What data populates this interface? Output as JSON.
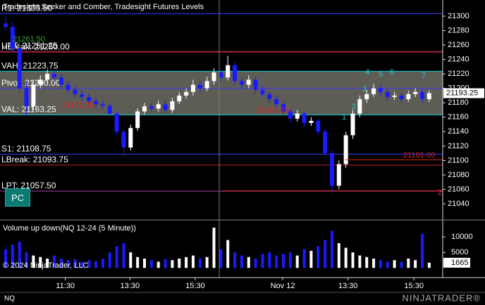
{
  "chart_data": [
    {
      "type": "candlestick",
      "title": "Tradesight Seeker and Comber, Tradesight Futures Levels",
      "open": [
        21290,
        21285,
        21255,
        21200,
        21175,
        21205,
        21212,
        21220,
        21215,
        21205,
        21198,
        21192,
        21188,
        21182,
        21178,
        21176,
        21165,
        21140,
        21118,
        21145,
        21168,
        21175,
        21172,
        21178,
        21170,
        21182,
        21190,
        21195,
        21205,
        21200,
        21210,
        21222,
        21215,
        21232,
        21210,
        21205,
        21212,
        21198,
        21192,
        21185,
        21178,
        21168,
        21158,
        21165,
        21152,
        21155,
        21140,
        21110,
        21065,
        21095,
        21135,
        21165,
        21185,
        21192,
        21200,
        21195,
        21188,
        21190,
        21185,
        21192,
        21195,
        21185
      ],
      "high": [
        21300,
        21292,
        21262,
        21208,
        21212,
        21218,
        21226,
        21225,
        21220,
        21210,
        21203,
        21197,
        21193,
        21187,
        21183,
        21180,
        21168,
        21143,
        21150,
        21172,
        21180,
        21179,
        21183,
        21182,
        21187,
        21195,
        21200,
        21212,
        21210,
        21216,
        21228,
        21227,
        21245,
        21236,
        21215,
        21218,
        21216,
        21203,
        21196,
        21190,
        21182,
        21172,
        21170,
        21168,
        21160,
        21158,
        21144,
        21115,
        21100,
        21140,
        21170,
        21190,
        21198,
        21206,
        21205,
        21199,
        21195,
        21194,
        21197,
        21200,
        21199,
        21197
      ],
      "low": [
        21280,
        21250,
        21195,
        21163,
        21170,
        21200,
        21207,
        21210,
        21200,
        21193,
        21187,
        21183,
        21177,
        21173,
        21171,
        21160,
        21135,
        21107,
        21114,
        21141,
        21164,
        21168,
        21168,
        21165,
        21166,
        21178,
        21186,
        21190,
        21195,
        21196,
        21205,
        21210,
        21211,
        21205,
        21200,
        21200,
        21193,
        21188,
        21180,
        21173,
        21163,
        21153,
        21154,
        21147,
        21148,
        21135,
        21105,
        21055,
        21060,
        21090,
        21130,
        21160,
        21180,
        21188,
        21190,
        21183,
        21184,
        21180,
        21181,
        21188,
        21180,
        21181
      ],
      "close": [
        21285,
        21255,
        21200,
        21175,
        21205,
        21212,
        21220,
        21215,
        21205,
        21198,
        21192,
        21188,
        21182,
        21178,
        21176,
        21165,
        21140,
        21118,
        21145,
        21168,
        21175,
        21172,
        21178,
        21170,
        21182,
        21190,
        21195,
        21205,
        21200,
        21210,
        21222,
        21215,
        21232,
        21210,
        21205,
        21212,
        21198,
        21192,
        21185,
        21178,
        21168,
        21158,
        21165,
        21152,
        21155,
        21140,
        21110,
        21065,
        21095,
        21135,
        21165,
        21185,
        21192,
        21200,
        21195,
        21188,
        21190,
        21185,
        21192,
        21195,
        21185,
        21193.25
      ],
      "up_color": "#ffffff",
      "down_color": "#1a1aff",
      "ylim": [
        21018.6,
        21322.4
      ],
      "yticks": [
        21300,
        21280,
        21260,
        21240,
        21220,
        21200,
        21180,
        21160,
        21140,
        21120,
        21100,
        21080,
        21060,
        21040
      ],
      "last_price": {
        "value": 21193.25,
        "label": "21193.25"
      },
      "xticks": [
        {
          "value": 8.6,
          "label": "11:30"
        },
        {
          "value": 17.9,
          "label": "13:30"
        },
        {
          "value": 27.3,
          "label": "15:30"
        },
        {
          "value": 39.9,
          "label": "Nov 12"
        },
        {
          "value": 49.3,
          "label": "13:30"
        },
        {
          "value": 58.8,
          "label": "15:30"
        }
      ],
      "levels": [
        {
          "label": "R1: 21303.50",
          "value": 21303.5,
          "color": "#3b3bff"
        },
        {
          "label": "UPT: 21251.25",
          "value": 21251.25,
          "color": "#c0306a"
        },
        {
          "label": "HBreak: 21250.00",
          "value": 21250,
          "color": "#a02020"
        },
        {
          "label": "VAH: 21223.75",
          "value": 21223.75,
          "color": "#00cccc"
        },
        {
          "label": "Pivot: 21200.00",
          "value": 21200,
          "color": "#3b3bff"
        },
        {
          "label": "VAL: 21163.25",
          "value": 21163.25,
          "color": "#00cccc"
        },
        {
          "label": "S1: 21108.75",
          "value": 21108.75,
          "color": "#3b3bff"
        },
        {
          "label": "LBreak: 21093.75",
          "value": 21093.75,
          "color": "#c02020"
        },
        {
          "label": "LPT: 21057.50",
          "value": 21057.5,
          "color": "#a040a0"
        }
      ],
      "value_area_color": "#5e5d55",
      "annotations": [
        {
          "label": "21261.50",
          "color": "#2fa82f"
        },
        {
          "label": "21171.25",
          "color": "#e02020"
        },
        {
          "label": "21161.25",
          "color": "#e02020"
        },
        {
          "label": "21101.00",
          "value": 21101,
          "color": "#e02020"
        },
        {
          "label": "2",
          "value": 21058,
          "color": "#e02020"
        },
        {
          "label": "1",
          "color": "#1ecfcf"
        },
        {
          "label": "2",
          "color": "#1ecfcf"
        },
        {
          "label": "3",
          "color": "#1ecfcf"
        },
        {
          "label": "4",
          "color": "#1ecfcf"
        },
        {
          "label": "5",
          "color": "#1ecfcf"
        },
        {
          "label": "6",
          "color": "#1ecfcf"
        },
        {
          "label": "7",
          "color": "#1ecfcf"
        }
      ]
    },
    {
      "type": "bar",
      "title": "Volume up down(NQ 12-24 (5 Minute))",
      "values": [
        6000,
        7500,
        8500,
        5000,
        4000,
        3500,
        3000,
        4000,
        3000,
        2500,
        2800,
        2000,
        2500,
        2200,
        3000,
        5000,
        7000,
        8000,
        5000,
        3500,
        3000,
        2500,
        2000,
        2800,
        2500,
        3000,
        3500,
        4000,
        3000,
        3500,
        13000,
        6000,
        9000,
        5000,
        4000,
        3500,
        3000,
        4500,
        5000,
        4000,
        4500,
        5000,
        4000,
        6000,
        5500,
        7000,
        9000,
        12000,
        8000,
        6500,
        5000,
        4000,
        3500,
        3000,
        2500,
        2000,
        2500,
        2000,
        3000,
        2500,
        11000,
        1665
      ],
      "ylim": [
        -2000,
        14800
      ],
      "yticks": [
        10000,
        5000
      ],
      "last_value": 1665
    }
  ],
  "instrument": "NQ",
  "copyright": "© 2024 NinjaTrader, LLC",
  "button": "PC",
  "logo": "NINJATRADER®"
}
